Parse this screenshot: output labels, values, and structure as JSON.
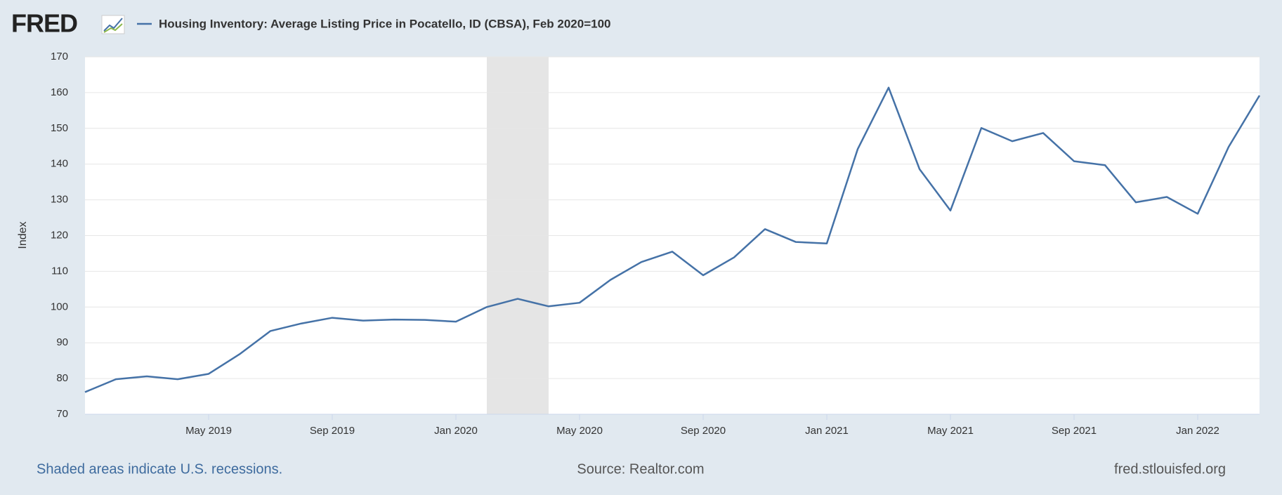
{
  "logo": "FRED",
  "chart_data": {
    "type": "line",
    "series": [
      {
        "name": "Housing Inventory: Average Listing Price in Pocatello, ID (CBSA), Feb 2020=100",
        "color": "#4572a7",
        "values": [
          76.2,
          79.8,
          80.6,
          79.8,
          81.3,
          86.8,
          93.3,
          95.4,
          97.0,
          96.2,
          96.5,
          96.4,
          95.9,
          100.0,
          102.3,
          100.2,
          101.2,
          107.6,
          112.6,
          115.5,
          108.9,
          113.9,
          121.8,
          118.2,
          117.8,
          144.2,
          161.4,
          138.6,
          127.0,
          150.1,
          146.4,
          148.7,
          140.8,
          139.7,
          129.3,
          130.8,
          126.1,
          144.8,
          159.2
        ]
      }
    ],
    "x": [
      "2019-01",
      "2019-02",
      "2019-03",
      "2019-04",
      "2019-05",
      "2019-06",
      "2019-07",
      "2019-08",
      "2019-09",
      "2019-10",
      "2019-11",
      "2019-12",
      "2020-01",
      "2020-02",
      "2020-03",
      "2020-04",
      "2020-05",
      "2020-06",
      "2020-07",
      "2020-08",
      "2020-09",
      "2020-10",
      "2020-11",
      "2020-12",
      "2021-01",
      "2021-02",
      "2021-03",
      "2021-04",
      "2021-05",
      "2021-06",
      "2021-07",
      "2021-08",
      "2021-09",
      "2021-10",
      "2021-11",
      "2021-12",
      "2022-01",
      "2022-02",
      "2022-03"
    ],
    "xlim": [
      "2019-01",
      "2022-03"
    ],
    "xticks": [
      {
        "value": "2019-05",
        "label": "May 2019"
      },
      {
        "value": "2019-09",
        "label": "Sep 2019"
      },
      {
        "value": "2020-01",
        "label": "Jan 2020"
      },
      {
        "value": "2020-05",
        "label": "May 2020"
      },
      {
        "value": "2020-09",
        "label": "Sep 2020"
      },
      {
        "value": "2021-01",
        "label": "Jan 2021"
      },
      {
        "value": "2021-05",
        "label": "May 2021"
      },
      {
        "value": "2021-09",
        "label": "Sep 2021"
      },
      {
        "value": "2022-01",
        "label": "Jan 2022"
      }
    ],
    "ylim": [
      70,
      170
    ],
    "yticks": [
      70,
      80,
      90,
      100,
      110,
      120,
      130,
      140,
      150,
      160,
      170
    ],
    "ylabel": "Index",
    "grid": true,
    "recessions": [
      {
        "start": "2020-02",
        "end": "2020-04"
      }
    ],
    "recession_note": "Shaded areas indicate U.S. recessions.",
    "source": "Source: Realtor.com",
    "site": "fred.stlouisfed.org"
  }
}
